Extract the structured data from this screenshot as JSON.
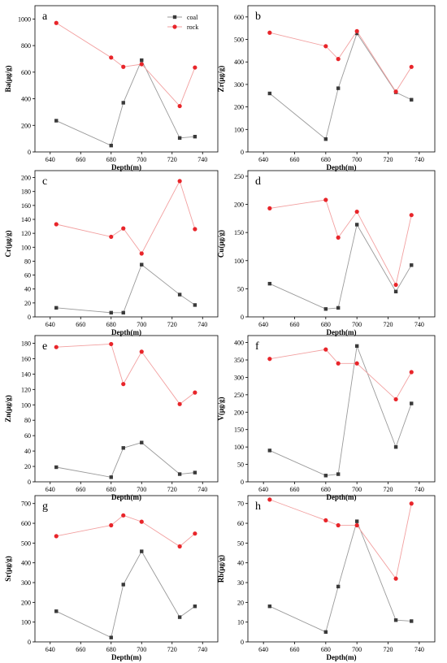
{
  "legend": {
    "coal": "coal",
    "rock": "rock"
  },
  "colors": {
    "coal": "#3a3a3a",
    "rock": "#e8252a",
    "coal_line": "#9a9a9a",
    "rock_line": "#f2a0a0"
  },
  "chart_data": [
    {
      "type": "line",
      "panel": "a",
      "xlabel": "Depth(m)",
      "ylabel": "Ba(μg/g)",
      "xlim": [
        630,
        750
      ],
      "ylim": [
        0,
        1100
      ],
      "xticks": [
        640,
        660,
        680,
        700,
        720,
        740
      ],
      "yticks": [
        0,
        200,
        400,
        600,
        800,
        1000
      ],
      "legend": true,
      "series": [
        {
          "name": "coal",
          "x": [
            644,
            680,
            688,
            700,
            725,
            735
          ],
          "y": [
            235,
            48,
            370,
            690,
            105,
            115
          ]
        },
        {
          "name": "rock",
          "x": [
            644,
            680,
            688,
            700,
            725,
            735
          ],
          "y": [
            970,
            710,
            640,
            660,
            345,
            635
          ]
        }
      ]
    },
    {
      "type": "line",
      "panel": "b",
      "xlabel": "Depth(m)",
      "ylabel": "Zr(μg/g)",
      "xlim": [
        630,
        750
      ],
      "ylim": [
        0,
        650
      ],
      "xticks": [
        640,
        660,
        680,
        700,
        720,
        740
      ],
      "yticks": [
        0,
        100,
        200,
        300,
        400,
        500,
        600
      ],
      "legend": false,
      "series": [
        {
          "name": "coal",
          "x": [
            644,
            680,
            688,
            700,
            725,
            735
          ],
          "y": [
            260,
            57,
            283,
            527,
            265,
            232
          ]
        },
        {
          "name": "rock",
          "x": [
            644,
            680,
            688,
            700,
            725,
            735
          ],
          "y": [
            530,
            470,
            413,
            537,
            268,
            378
          ]
        }
      ]
    },
    {
      "type": "line",
      "panel": "c",
      "xlabel": "Depth(m)",
      "ylabel": "Cr(μg/g)",
      "xlim": [
        630,
        750
      ],
      "ylim": [
        0,
        210
      ],
      "xticks": [
        640,
        660,
        680,
        700,
        720,
        740
      ],
      "yticks": [
        0,
        20,
        40,
        60,
        80,
        100,
        120,
        140,
        160,
        180,
        200
      ],
      "legend": false,
      "series": [
        {
          "name": "coal",
          "x": [
            644,
            680,
            688,
            700,
            725,
            735
          ],
          "y": [
            13,
            6,
            6,
            75,
            32,
            17
          ]
        },
        {
          "name": "rock",
          "x": [
            644,
            680,
            688,
            700,
            725,
            735
          ],
          "y": [
            133,
            115,
            127,
            91,
            195,
            126
          ]
        }
      ]
    },
    {
      "type": "line",
      "panel": "d",
      "xlabel": "Depth(m)",
      "ylabel": "Cu(μg/g)",
      "xlim": [
        630,
        750
      ],
      "ylim": [
        0,
        260
      ],
      "xticks": [
        640,
        660,
        680,
        700,
        720,
        740
      ],
      "yticks": [
        0,
        50,
        100,
        150,
        200,
        250
      ],
      "legend": false,
      "series": [
        {
          "name": "coal",
          "x": [
            644,
            680,
            688,
            700,
            725,
            735
          ],
          "y": [
            59,
            14,
            16,
            164,
            45,
            92
          ]
        },
        {
          "name": "rock",
          "x": [
            644,
            680,
            688,
            700,
            725,
            735
          ],
          "y": [
            193,
            208,
            141,
            187,
            57,
            181
          ]
        }
      ]
    },
    {
      "type": "line",
      "panel": "e",
      "xlabel": "Depth(m)",
      "ylabel": "Zn(μg/g)",
      "xlim": [
        630,
        750
      ],
      "ylim": [
        0,
        190
      ],
      "xticks": [
        640,
        660,
        680,
        700,
        720,
        740
      ],
      "yticks": [
        0,
        20,
        40,
        60,
        80,
        100,
        120,
        140,
        160,
        180
      ],
      "legend": false,
      "series": [
        {
          "name": "coal",
          "x": [
            644,
            680,
            688,
            700,
            725,
            735
          ],
          "y": [
            19,
            6,
            44,
            51,
            10,
            12
          ]
        },
        {
          "name": "rock",
          "x": [
            644,
            680,
            688,
            700,
            725,
            735
          ],
          "y": [
            175,
            179,
            127,
            169,
            101,
            116
          ]
        }
      ]
    },
    {
      "type": "line",
      "panel": "f",
      "xlabel": "Depth(m)",
      "ylabel": "V(μg/g)",
      "xlim": [
        630,
        750
      ],
      "ylim": [
        0,
        420
      ],
      "xticks": [
        640,
        660,
        680,
        700,
        720,
        740
      ],
      "yticks": [
        0,
        50,
        100,
        150,
        200,
        250,
        300,
        350,
        400
      ],
      "legend": false,
      "series": [
        {
          "name": "coal",
          "x": [
            644,
            680,
            688,
            700,
            725,
            735
          ],
          "y": [
            90,
            18,
            22,
            390,
            100,
            225
          ]
        },
        {
          "name": "rock",
          "x": [
            644,
            680,
            688,
            700,
            725,
            735
          ],
          "y": [
            353,
            380,
            340,
            340,
            237,
            315
          ]
        }
      ]
    },
    {
      "type": "line",
      "panel": "g",
      "xlabel": "Depth(m)",
      "ylabel": "Sr(μg/g)",
      "xlim": [
        630,
        750
      ],
      "ylim": [
        0,
        740
      ],
      "xticks": [
        640,
        660,
        680,
        700,
        720,
        740
      ],
      "yticks": [
        0,
        100,
        200,
        300,
        400,
        500,
        600,
        700
      ],
      "legend": false,
      "series": [
        {
          "name": "coal",
          "x": [
            644,
            680,
            688,
            700,
            725,
            735
          ],
          "y": [
            155,
            22,
            290,
            458,
            125,
            180
          ]
        },
        {
          "name": "rock",
          "x": [
            644,
            680,
            688,
            700,
            725,
            735
          ],
          "y": [
            535,
            590,
            640,
            608,
            483,
            548
          ]
        }
      ]
    },
    {
      "type": "line",
      "panel": "h",
      "xlabel": "Depth(m)",
      "ylabel": "Rb(μg/g)",
      "xlim": [
        630,
        750
      ],
      "ylim": [
        0,
        74
      ],
      "xticks": [
        640,
        660,
        680,
        700,
        720,
        740
      ],
      "yticks": [
        0,
        10,
        20,
        30,
        40,
        50,
        60,
        70
      ],
      "legend": false,
      "series": [
        {
          "name": "coal",
          "x": [
            644,
            680,
            688,
            700,
            725,
            735
          ],
          "y": [
            18,
            5,
            28,
            61,
            11,
            10.5
          ]
        },
        {
          "name": "rock",
          "x": [
            644,
            680,
            688,
            700,
            725,
            735
          ],
          "y": [
            72,
            61.5,
            59,
            59,
            32,
            70
          ]
        }
      ]
    }
  ]
}
